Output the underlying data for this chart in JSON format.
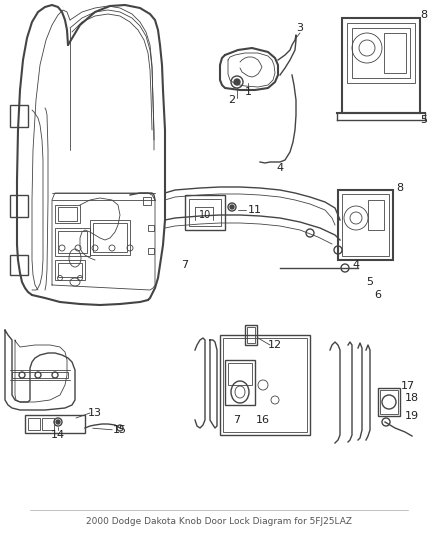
{
  "title": "2000 Dodge Dakota Knob Door Lock Diagram for 5FJ25LAZ",
  "bg_color": "#ffffff",
  "line_color": "#444444",
  "text_color": "#222222",
  "fig_width": 4.38,
  "fig_height": 5.33,
  "dpi": 100,
  "gray_fill": "#cccccc",
  "light_gray": "#e8e8e8"
}
